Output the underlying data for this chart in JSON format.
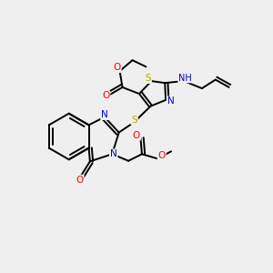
{
  "background_color": "#efefef",
  "atom_colors": {
    "C": "#000000",
    "N": "#0000cc",
    "O": "#ff0000",
    "S": "#bbaa00",
    "H": "#007070"
  },
  "bond_color": "#000000",
  "bond_width": 1.4
}
